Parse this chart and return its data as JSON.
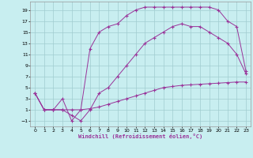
{
  "xlabel": "Windchill (Refroidissement éolien,°C)",
  "background_color": "#c8eef0",
  "grid_color": "#a0ccd0",
  "line_color": "#993399",
  "xlim": [
    -0.5,
    23.5
  ],
  "ylim": [
    -2,
    20.5
  ],
  "xticks": [
    0,
    1,
    2,
    3,
    4,
    5,
    6,
    7,
    8,
    9,
    10,
    11,
    12,
    13,
    14,
    15,
    16,
    17,
    18,
    19,
    20,
    21,
    22,
    23
  ],
  "yticks": [
    -1,
    1,
    3,
    5,
    7,
    9,
    11,
    13,
    15,
    17,
    19
  ],
  "curve1_x": [
    0,
    1,
    2,
    3,
    4,
    5,
    6,
    7,
    8,
    9,
    10,
    11,
    12,
    13,
    14,
    15,
    16,
    17,
    18,
    19,
    20,
    21,
    22,
    23
  ],
  "curve1_y": [
    4,
    1,
    1,
    1,
    1,
    1,
    1.2,
    1.5,
    2,
    2.5,
    3,
    3.5,
    4,
    4.5,
    5,
    5.2,
    5.4,
    5.5,
    5.6,
    5.7,
    5.8,
    5.9,
    6.0,
    6.0
  ],
  "curve2_x": [
    0,
    1,
    2,
    3,
    4,
    5,
    6,
    7,
    8,
    9,
    10,
    11,
    12,
    13,
    14,
    15,
    16,
    17,
    18,
    19,
    20,
    21,
    22,
    23
  ],
  "curve2_y": [
    4,
    1,
    1,
    1,
    0,
    -1,
    1,
    4,
    5,
    7,
    9,
    11,
    13,
    14,
    15,
    16,
    16.5,
    16,
    16,
    15,
    14,
    13,
    11,
    7.5
  ],
  "curve3_x": [
    0,
    1,
    2,
    3,
    4,
    5,
    6,
    7,
    8,
    9,
    10,
    11,
    12,
    13,
    14,
    15,
    16,
    17,
    18,
    19,
    20,
    21,
    22,
    23
  ],
  "curve3_y": [
    4,
    1,
    1,
    3,
    -1,
    1,
    12,
    15,
    16,
    16.5,
    18,
    19,
    19.5,
    19.5,
    19.5,
    19.5,
    19.5,
    19.5,
    19.5,
    19.5,
    19,
    17,
    16,
    8
  ]
}
